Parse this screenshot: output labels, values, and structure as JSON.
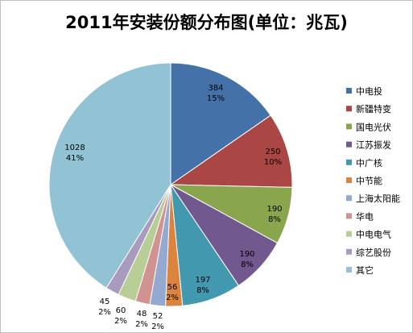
{
  "chart_data": {
    "type": "pie",
    "title": "2011年安装份额分布图(单位：兆瓦)",
    "legend_position": "right",
    "slices": [
      {
        "name": "中电投",
        "value": 384,
        "percent": "15%",
        "color": "#4472A8"
      },
      {
        "name": "新疆特变",
        "value": 250,
        "percent": "10%",
        "color": "#AA4643"
      },
      {
        "name": "国电光伏",
        "value": 190,
        "percent": "8%",
        "color": "#89A54E"
      },
      {
        "name": "江苏振发",
        "value": 190,
        "percent": "8%",
        "color": "#71588F"
      },
      {
        "name": "中广核",
        "value": 197,
        "percent": "8%",
        "color": "#4198AF"
      },
      {
        "name": "中节能",
        "value": 56,
        "percent": "2%",
        "color": "#DB843D"
      },
      {
        "name": "上海太阳能",
        "value": 52,
        "percent": "2%",
        "color": "#93A9CF"
      },
      {
        "name": "华电",
        "value": 48,
        "percent": "2%",
        "color": "#D19392"
      },
      {
        "name": "中电电气",
        "value": 60,
        "percent": "2%",
        "color": "#B9CD96"
      },
      {
        "name": "综艺股份",
        "value": 45,
        "percent": "2%",
        "color": "#A99BBD"
      },
      {
        "name": "其它",
        "value": 1028,
        "percent": "41%",
        "color": "#92C3D5"
      }
    ]
  }
}
